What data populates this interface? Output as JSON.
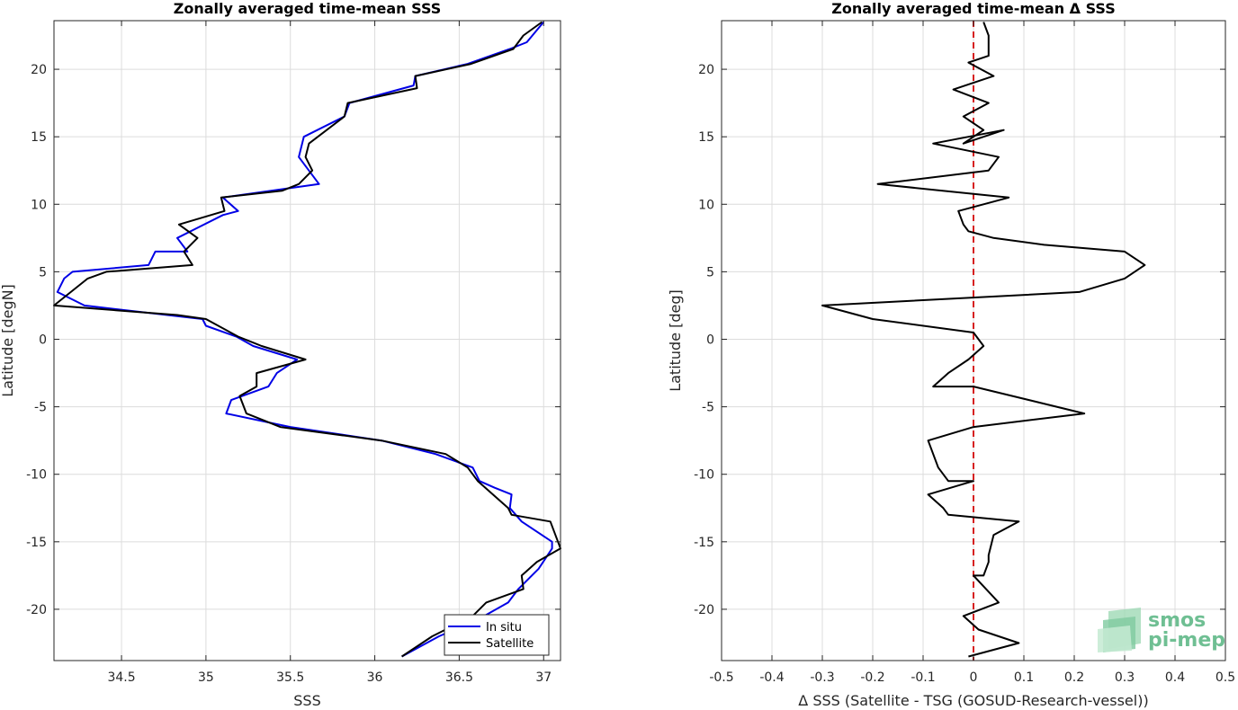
{
  "chart_data": [
    {
      "type": "line",
      "title": "Zonally averaged time-mean SSS",
      "xlabel": "SSS",
      "ylabel": "Latitude [degN]",
      "xlim": [
        34.1,
        37.1
      ],
      "ylim": [
        -23.8,
        23.6
      ],
      "xticks": [
        34.5,
        35,
        35.5,
        36,
        36.5,
        37
      ],
      "xtick_labels": [
        "34.5",
        "35",
        "35.5",
        "36",
        "36.5",
        "37"
      ],
      "yticks": [
        -20,
        -15,
        -10,
        -5,
        0,
        5,
        10,
        15,
        20
      ],
      "ytick_labels": [
        "-20",
        "-15",
        "-10",
        "-5",
        "0",
        "5",
        "10",
        "15",
        "20"
      ],
      "grid": true,
      "legend_position": "bottom-right",
      "series": [
        {
          "name": "In situ",
          "color": "#0000e6",
          "x": [
            37.0,
            36.9,
            36.8,
            36.55,
            36.24,
            36.23,
            35.85,
            35.82,
            35.58,
            35.55,
            35.67,
            35.1,
            35.19,
            35.1,
            34.83,
            34.89,
            34.7,
            34.66,
            34.21,
            34.16,
            34.12,
            34.28,
            34.98,
            35.0,
            35.18,
            35.28,
            35.54,
            35.42,
            35.37,
            35.15,
            35.12,
            35.5,
            36.04,
            36.36,
            36.58,
            36.62,
            36.71,
            36.81,
            36.8,
            36.87,
            37.05,
            37.05,
            36.97,
            36.85,
            36.79,
            36.62,
            36.38,
            36.16
          ],
          "y": [
            23.5,
            22.0,
            21.5,
            20.4,
            19.5,
            18.8,
            17.5,
            16.5,
            15.0,
            13.5,
            11.5,
            10.5,
            9.5,
            9.2,
            7.5,
            6.5,
            6.5,
            5.5,
            5.0,
            4.5,
            3.5,
            2.5,
            1.5,
            1.0,
            0.2,
            -0.5,
            -1.5,
            -2.5,
            -3.5,
            -4.5,
            -5.5,
            -6.5,
            -7.5,
            -8.5,
            -9.5,
            -10.5,
            -11.0,
            -11.5,
            -12.5,
            -13.5,
            -15.0,
            -15.5,
            -17.0,
            -18.5,
            -19.5,
            -20.7,
            -22.0,
            -23.5
          ]
        },
        {
          "name": "Satellite",
          "color": "#000000",
          "x": [
            36.99,
            36.88,
            36.82,
            36.57,
            36.24,
            36.25,
            35.84,
            35.82,
            35.61,
            35.59,
            35.63,
            35.55,
            35.45,
            35.09,
            35.11,
            34.84,
            34.95,
            34.87,
            34.92,
            34.41,
            34.3,
            34.1,
            34.83,
            35.0,
            35.19,
            35.33,
            35.59,
            35.3,
            35.3,
            35.2,
            35.24,
            35.44,
            36.04,
            36.42,
            36.55,
            36.61,
            36.7,
            36.79,
            36.81,
            37.04,
            37.1,
            36.96,
            36.87,
            36.88,
            36.66,
            36.58,
            36.34,
            36.16
          ],
          "y": [
            23.5,
            22.5,
            21.5,
            20.4,
            19.5,
            18.6,
            17.5,
            16.5,
            14.5,
            13.5,
            12.5,
            11.5,
            11.0,
            10.5,
            9.5,
            8.5,
            7.5,
            6.5,
            5.5,
            5.0,
            4.5,
            2.5,
            1.8,
            1.5,
            0.2,
            -0.5,
            -1.5,
            -2.5,
            -3.5,
            -4.2,
            -5.5,
            -6.5,
            -7.5,
            -8.5,
            -9.5,
            -10.5,
            -11.5,
            -12.5,
            -13.0,
            -13.5,
            -15.5,
            -16.5,
            -17.5,
            -18.5,
            -19.5,
            -20.5,
            -22.0,
            -23.5
          ]
        }
      ]
    },
    {
      "type": "line",
      "title": "Zonally averaged time-mean Δ SSS",
      "xlabel": "Δ SSS (Satellite - TSG (GOSUD-Research-vessel))",
      "ylabel": "Latitude [deg]",
      "xlim": [
        -0.5,
        0.5
      ],
      "ylim": [
        -23.8,
        23.6
      ],
      "xticks": [
        -0.5,
        -0.4,
        -0.3,
        -0.2,
        -0.1,
        0,
        0.1,
        0.2,
        0.3,
        0.4,
        0.5
      ],
      "xtick_labels": [
        "-0.5",
        "-0.4",
        "-0.3",
        "-0.2",
        "-0.1",
        "0",
        "0.1",
        "0.2",
        "0.3",
        "0.4",
        "0.5"
      ],
      "yticks": [
        -20,
        -15,
        -10,
        -5,
        0,
        5,
        10,
        15,
        20
      ],
      "ytick_labels": [
        "-20",
        "-15",
        "-10",
        "-5",
        "0",
        "5",
        "10",
        "15",
        "20"
      ],
      "grid": true,
      "reference_line": {
        "x": 0,
        "color": "#d62020",
        "style": "dashed"
      },
      "series": [
        {
          "color": "#000000",
          "x": [
            0.02,
            0.03,
            0.03,
            -0.01,
            0.04,
            -0.04,
            0.03,
            -0.02,
            0.02,
            -0.02,
            0.06,
            -0.08,
            0.05,
            0.03,
            -0.19,
            0.07,
            -0.03,
            -0.02,
            -0.01,
            0.04,
            0.14,
            0.3,
            0.34,
            0.3,
            0.21,
            -0.3,
            -0.2,
            0.0,
            0.02,
            -0.01,
            -0.05,
            -0.08,
            0.0,
            0.22,
            0.0,
            -0.09,
            -0.08,
            -0.07,
            -0.05,
            0.0,
            -0.09,
            -0.06,
            -0.05,
            0.09,
            0.04,
            0.03,
            0.03,
            0.02,
            0.0,
            0.05,
            -0.02,
            0.01,
            0.09,
            -0.01
          ],
          "y": [
            23.5,
            22.5,
            21.0,
            20.5,
            19.5,
            18.5,
            17.5,
            16.5,
            15.5,
            14.5,
            15.5,
            14.5,
            13.5,
            12.5,
            11.5,
            10.5,
            9.5,
            8.5,
            8.0,
            7.5,
            7.0,
            6.5,
            5.5,
            4.5,
            3.5,
            2.5,
            1.5,
            0.5,
            -0.5,
            -1.5,
            -2.5,
            -3.5,
            -3.5,
            -5.5,
            -6.5,
            -7.5,
            -8.5,
            -9.5,
            -10.5,
            -10.5,
            -11.5,
            -12.5,
            -13.0,
            -13.5,
            -14.5,
            -16.0,
            -16.5,
            -17.5,
            -17.5,
            -19.5,
            -20.5,
            -21.5,
            -22.5,
            -23.5
          ]
        }
      ]
    }
  ],
  "logo": {
    "line1": "smos",
    "line2": "pi-mep"
  }
}
